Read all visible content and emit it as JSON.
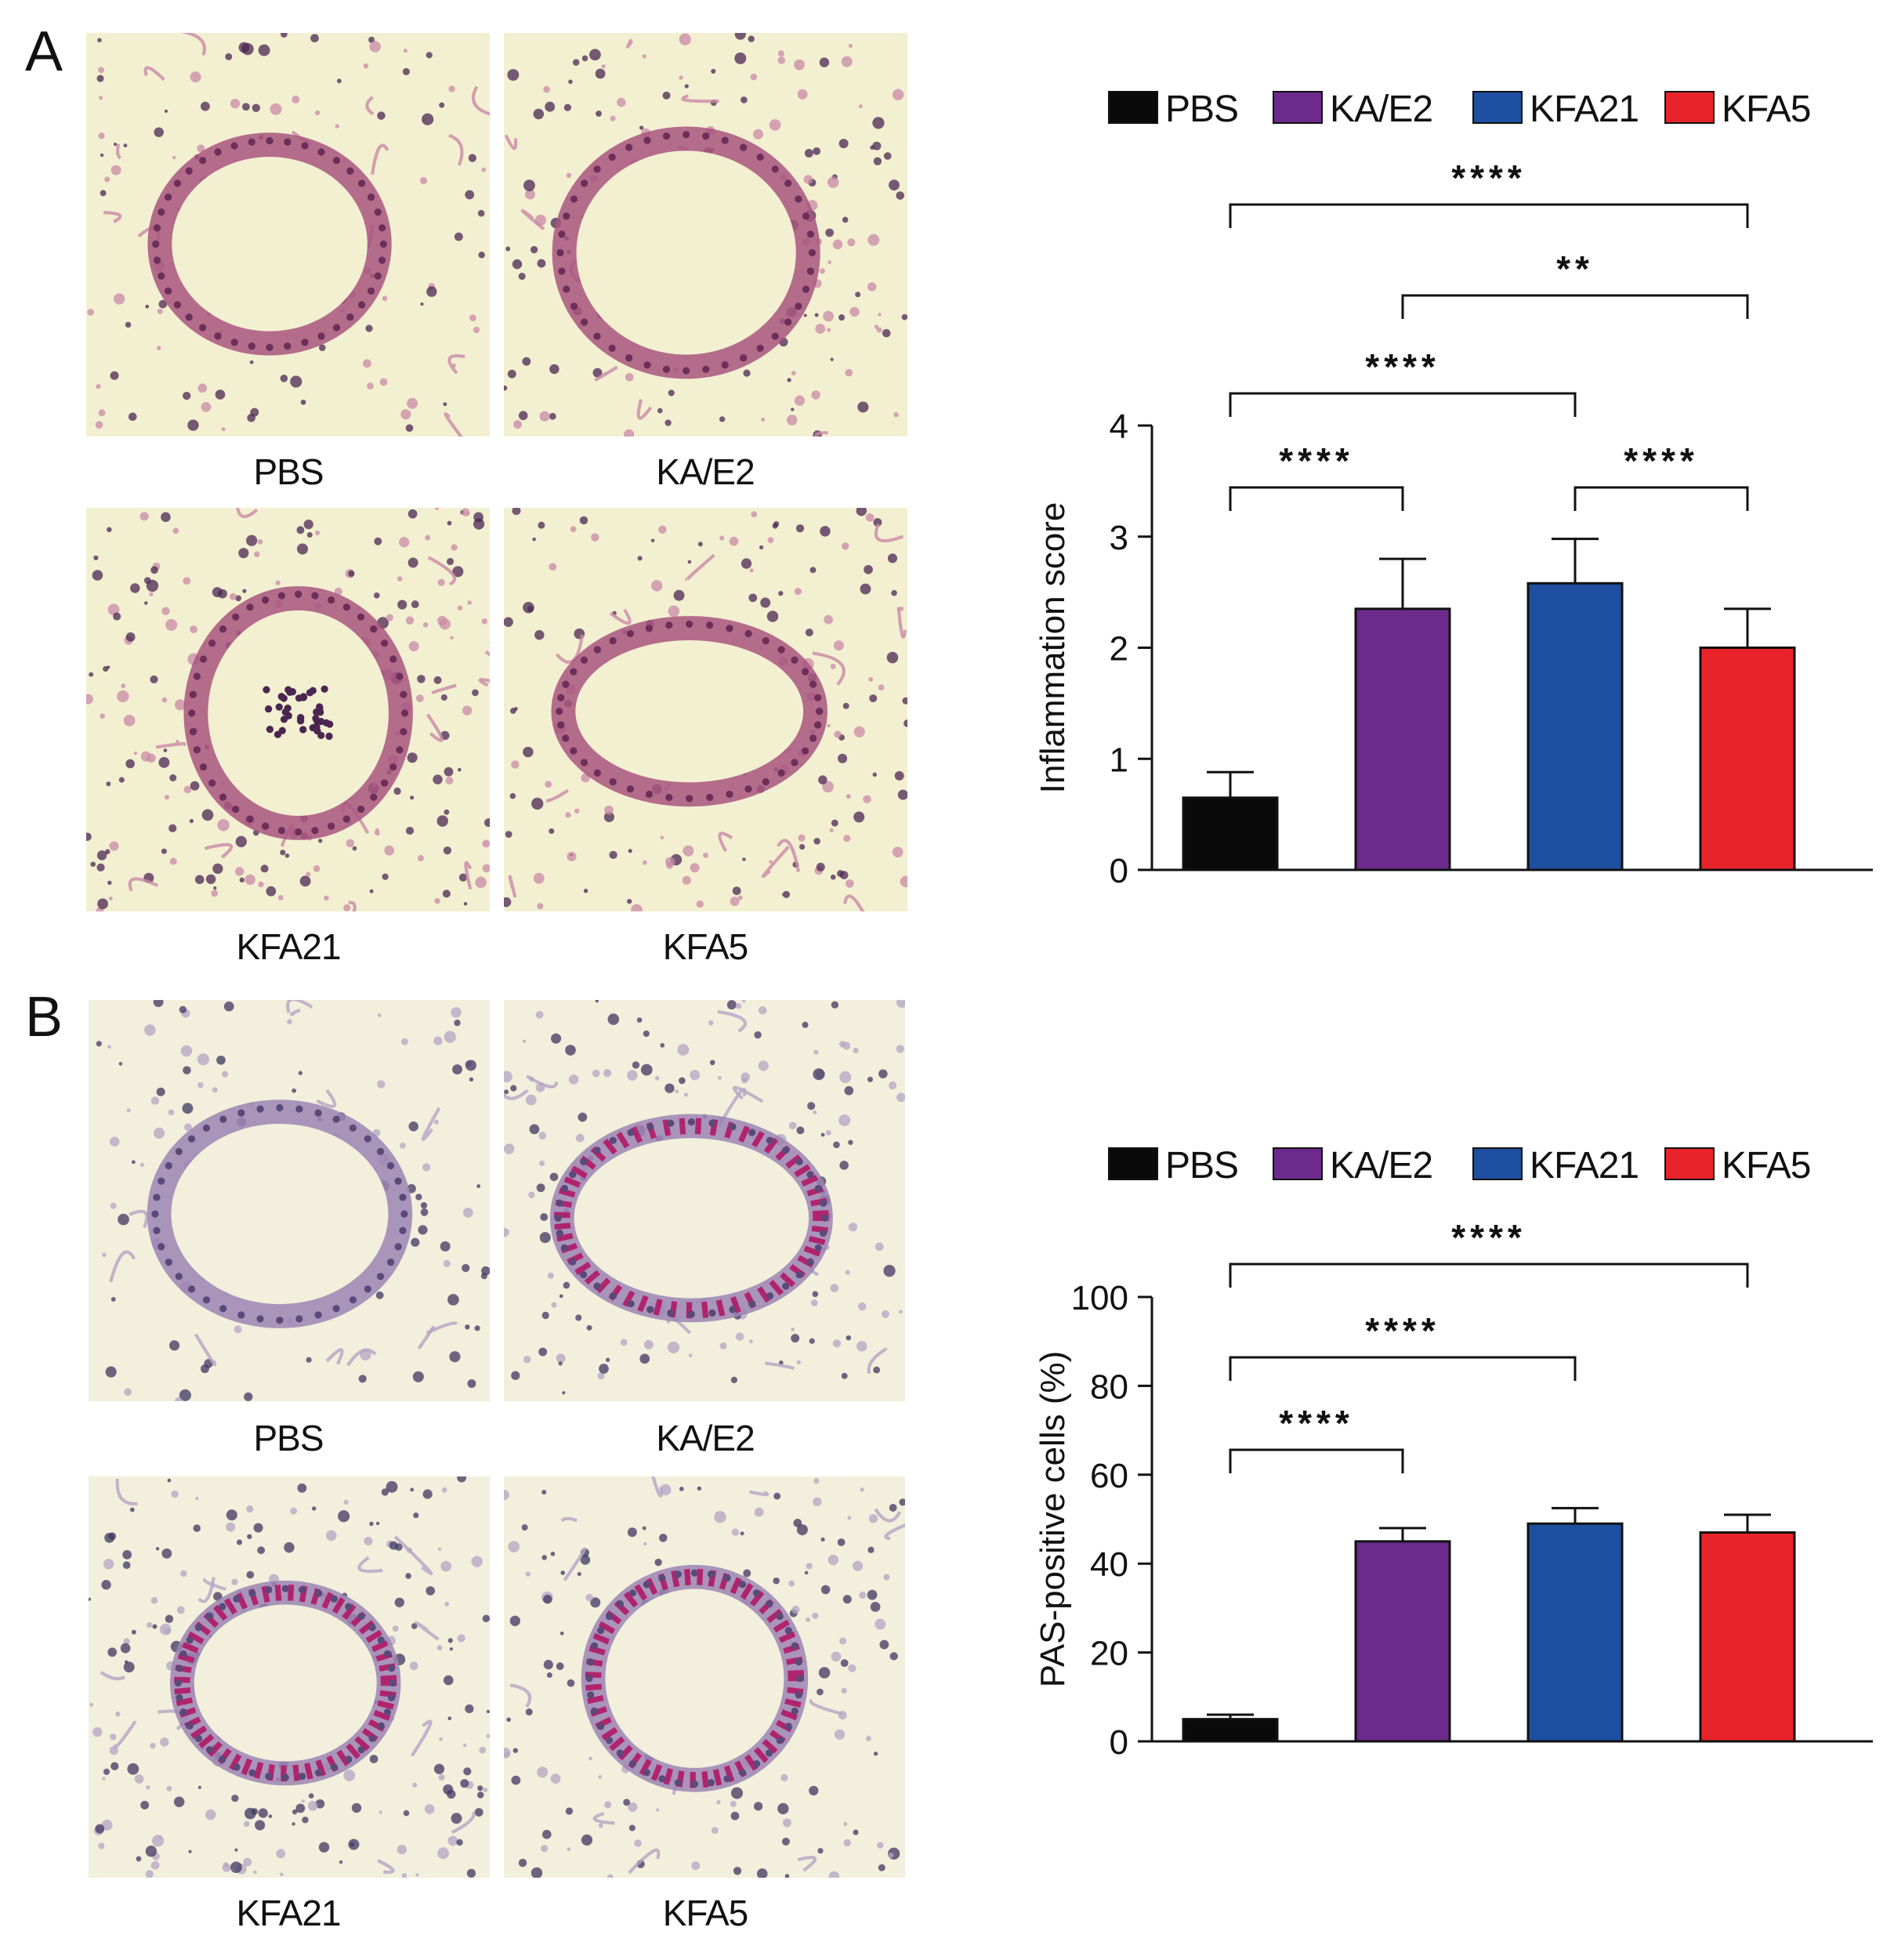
{
  "panels": [
    {
      "letter": "A",
      "images": [
        {
          "label": "PBS",
          "stain": "he-light"
        },
        {
          "label": "KA/E2",
          "stain": "he-medium"
        },
        {
          "label": "KFA21",
          "stain": "he-dense"
        },
        {
          "label": "KFA5",
          "stain": "he-medium"
        }
      ]
    },
    {
      "letter": "B",
      "images": [
        {
          "label": "PBS",
          "stain": "pas-light"
        },
        {
          "label": "KA/E2",
          "stain": "pas-goblet"
        },
        {
          "label": "KFA21",
          "stain": "pas-goblet-dense"
        },
        {
          "label": "KFA5",
          "stain": "pas-goblet"
        }
      ]
    }
  ],
  "colors": {
    "PBS": "#0a0a0a",
    "KA/E2": "#6b2a8c",
    "KFA21": "#1e4fa0",
    "KFA5": "#e8242a"
  },
  "chart_data": [
    {
      "type": "bar",
      "categories": [
        "PBS",
        "KA/E2",
        "KFA21",
        "KFA5"
      ],
      "legend": [
        "PBS",
        "KA/E2",
        "KFA21",
        "KFA5"
      ],
      "legend_position": "top",
      "values": [
        0.65,
        2.35,
        2.58,
        2.0
      ],
      "errors": [
        0.23,
        0.45,
        0.4,
        0.35
      ],
      "ylabel": "Inflammation score",
      "ylim": [
        0,
        4
      ],
      "yticks": [
        "0",
        "1",
        "2",
        "3",
        "4"
      ],
      "grid": false,
      "significance": [
        {
          "from": "PBS",
          "to": "KA/E2",
          "label": "****"
        },
        {
          "from": "KFA21",
          "to": "KFA5",
          "label": "****"
        },
        {
          "from": "PBS",
          "to": "KFA21",
          "label": "****"
        },
        {
          "from": "KA/E2",
          "to": "KFA5",
          "label": "**"
        },
        {
          "from": "PBS",
          "to": "KFA5",
          "label": "****"
        }
      ]
    },
    {
      "type": "bar",
      "categories": [
        "PBS",
        "KA/E2",
        "KFA21",
        "KFA5"
      ],
      "legend": [
        "PBS",
        "KA/E2",
        "KFA21",
        "KFA5"
      ],
      "legend_position": "top",
      "values": [
        5,
        45,
        49,
        47
      ],
      "errors": [
        1,
        3,
        3.5,
        4
      ],
      "ylabel": "PAS-positive cells (%)",
      "ylim": [
        0,
        100
      ],
      "yticks": [
        "0",
        "20",
        "40",
        "60",
        "80",
        "100"
      ],
      "grid": false,
      "significance": [
        {
          "from": "PBS",
          "to": "KA/E2",
          "label": "****"
        },
        {
          "from": "PBS",
          "to": "KFA21",
          "label": "****"
        },
        {
          "from": "PBS",
          "to": "KFA5",
          "label": "****"
        }
      ]
    }
  ]
}
